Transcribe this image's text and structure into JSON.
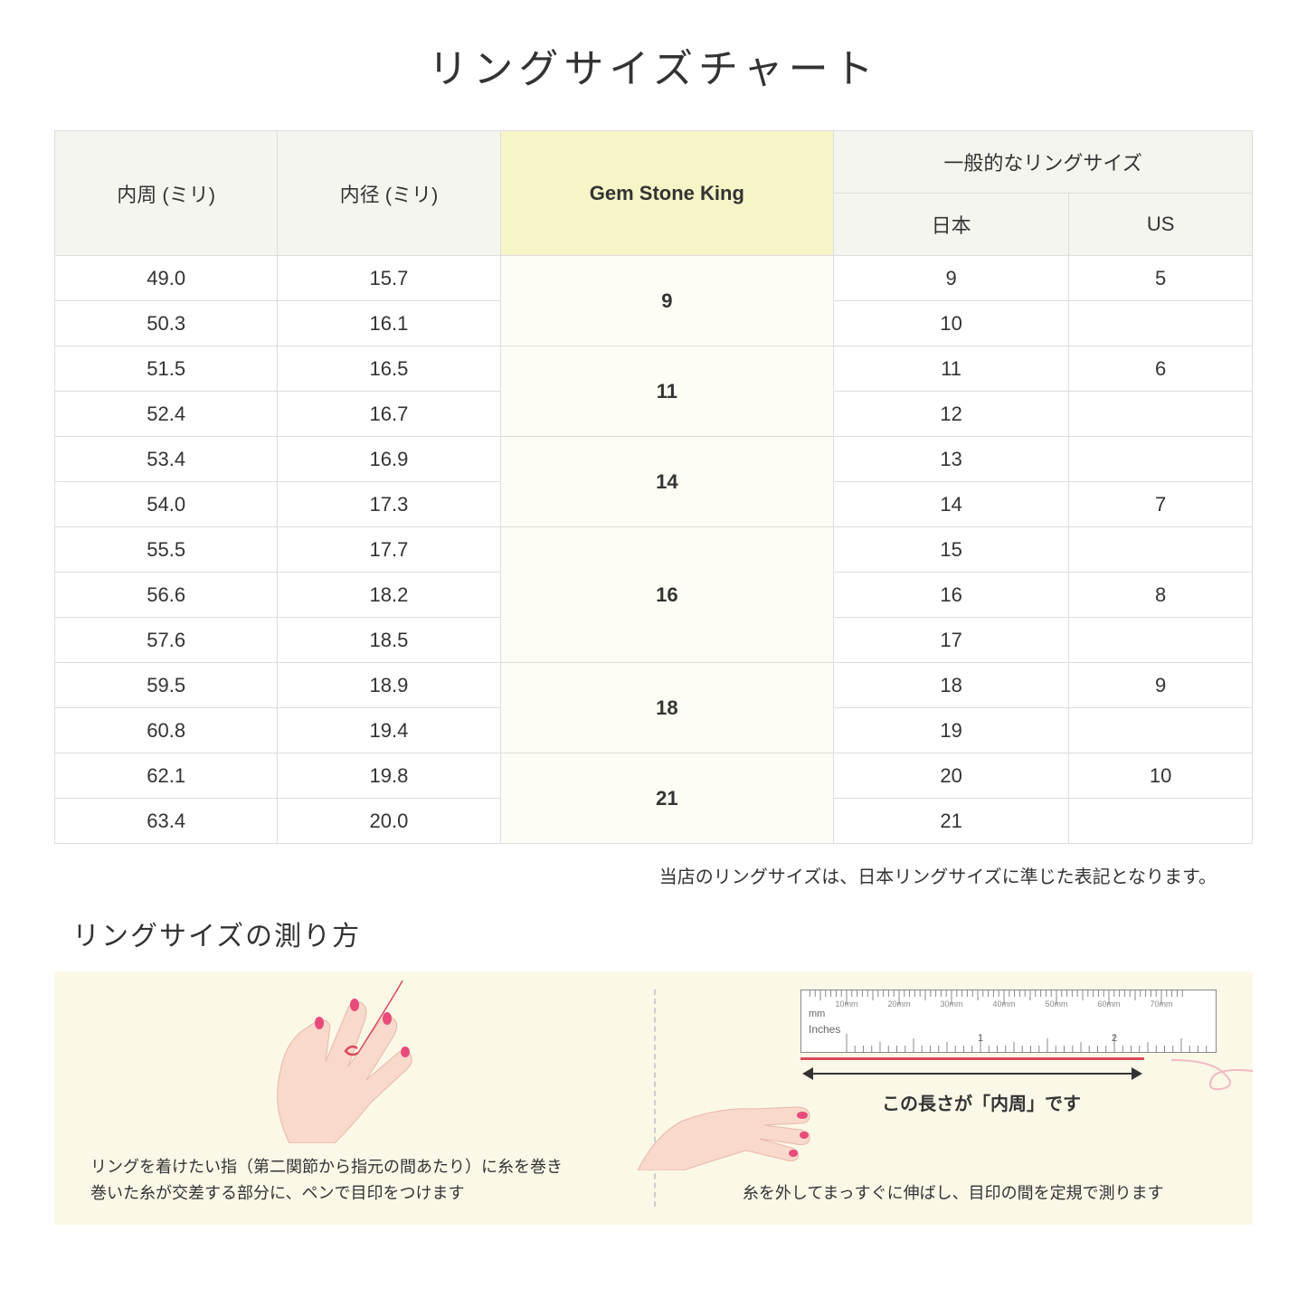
{
  "title": "リングサイズチャート",
  "table": {
    "headers": {
      "circumference": "内周 (ミリ)",
      "diameter": "内径 (ミリ)",
      "gsk": "Gem Stone King",
      "general": "一般的なリングサイズ",
      "japan": "日本",
      "us": "US"
    },
    "groups": [
      {
        "gsk": "9",
        "rows": [
          {
            "circ": "49.0",
            "dia": "15.7",
            "jp": "9",
            "us": "5"
          },
          {
            "circ": "50.3",
            "dia": "16.1",
            "jp": "10",
            "us": ""
          }
        ]
      },
      {
        "gsk": "11",
        "rows": [
          {
            "circ": "51.5",
            "dia": "16.5",
            "jp": "11",
            "us": "6"
          },
          {
            "circ": "52.4",
            "dia": "16.7",
            "jp": "12",
            "us": ""
          }
        ]
      },
      {
        "gsk": "14",
        "rows": [
          {
            "circ": "53.4",
            "dia": "16.9",
            "jp": "13",
            "us": ""
          },
          {
            "circ": "54.0",
            "dia": "17.3",
            "jp": "14",
            "us": "7"
          }
        ]
      },
      {
        "gsk": "16",
        "rows": [
          {
            "circ": "55.5",
            "dia": "17.7",
            "jp": "15",
            "us": ""
          },
          {
            "circ": "56.6",
            "dia": "18.2",
            "jp": "16",
            "us": "8"
          },
          {
            "circ": "57.6",
            "dia": "18.5",
            "jp": "17",
            "us": ""
          }
        ]
      },
      {
        "gsk": "18",
        "rows": [
          {
            "circ": "59.5",
            "dia": "18.9",
            "jp": "18",
            "us": "9"
          },
          {
            "circ": "60.8",
            "dia": "19.4",
            "jp": "19",
            "us": ""
          }
        ]
      },
      {
        "gsk": "21",
        "rows": [
          {
            "circ": "62.1",
            "dia": "19.8",
            "jp": "20",
            "us": "10"
          },
          {
            "circ": "63.4",
            "dia": "20.0",
            "jp": "21",
            "us": ""
          }
        ]
      }
    ],
    "highlight_bg": "#f5f5c8",
    "header_bg": "#f5f5f0",
    "border_color": "#dddddd"
  },
  "note": "当店のリングサイズは、日本リングサイズに準じた表記となります。",
  "subtitle": "リングサイズの測り方",
  "instructions": {
    "bg_color": "#fbf8e8",
    "left_text": "リングを着けたい指（第二関節から指元の間あたり）に糸を巻き\n巻いた糸が交差する部分に、ペンで目印をつけます",
    "right_text": "糸を外してまっすぐに伸ばし、目印の間を定規で測ります",
    "arrow_caption": "この長さが「内周」です",
    "ruler": {
      "mm_ticks": [
        "10mm",
        "20mm",
        "30mm",
        "40mm",
        "50mm",
        "60mm",
        "70mm"
      ],
      "mm_label": "mm",
      "inches_label": "Inches",
      "inch_major": [
        "1",
        "2"
      ]
    },
    "hand_skin": "#f8d9cc",
    "hand_shadow": "#e8b8a8",
    "nail_color": "#e84b7a",
    "thread_color": "#d94b5b",
    "thread_curl_color": "#f2b8c2"
  }
}
